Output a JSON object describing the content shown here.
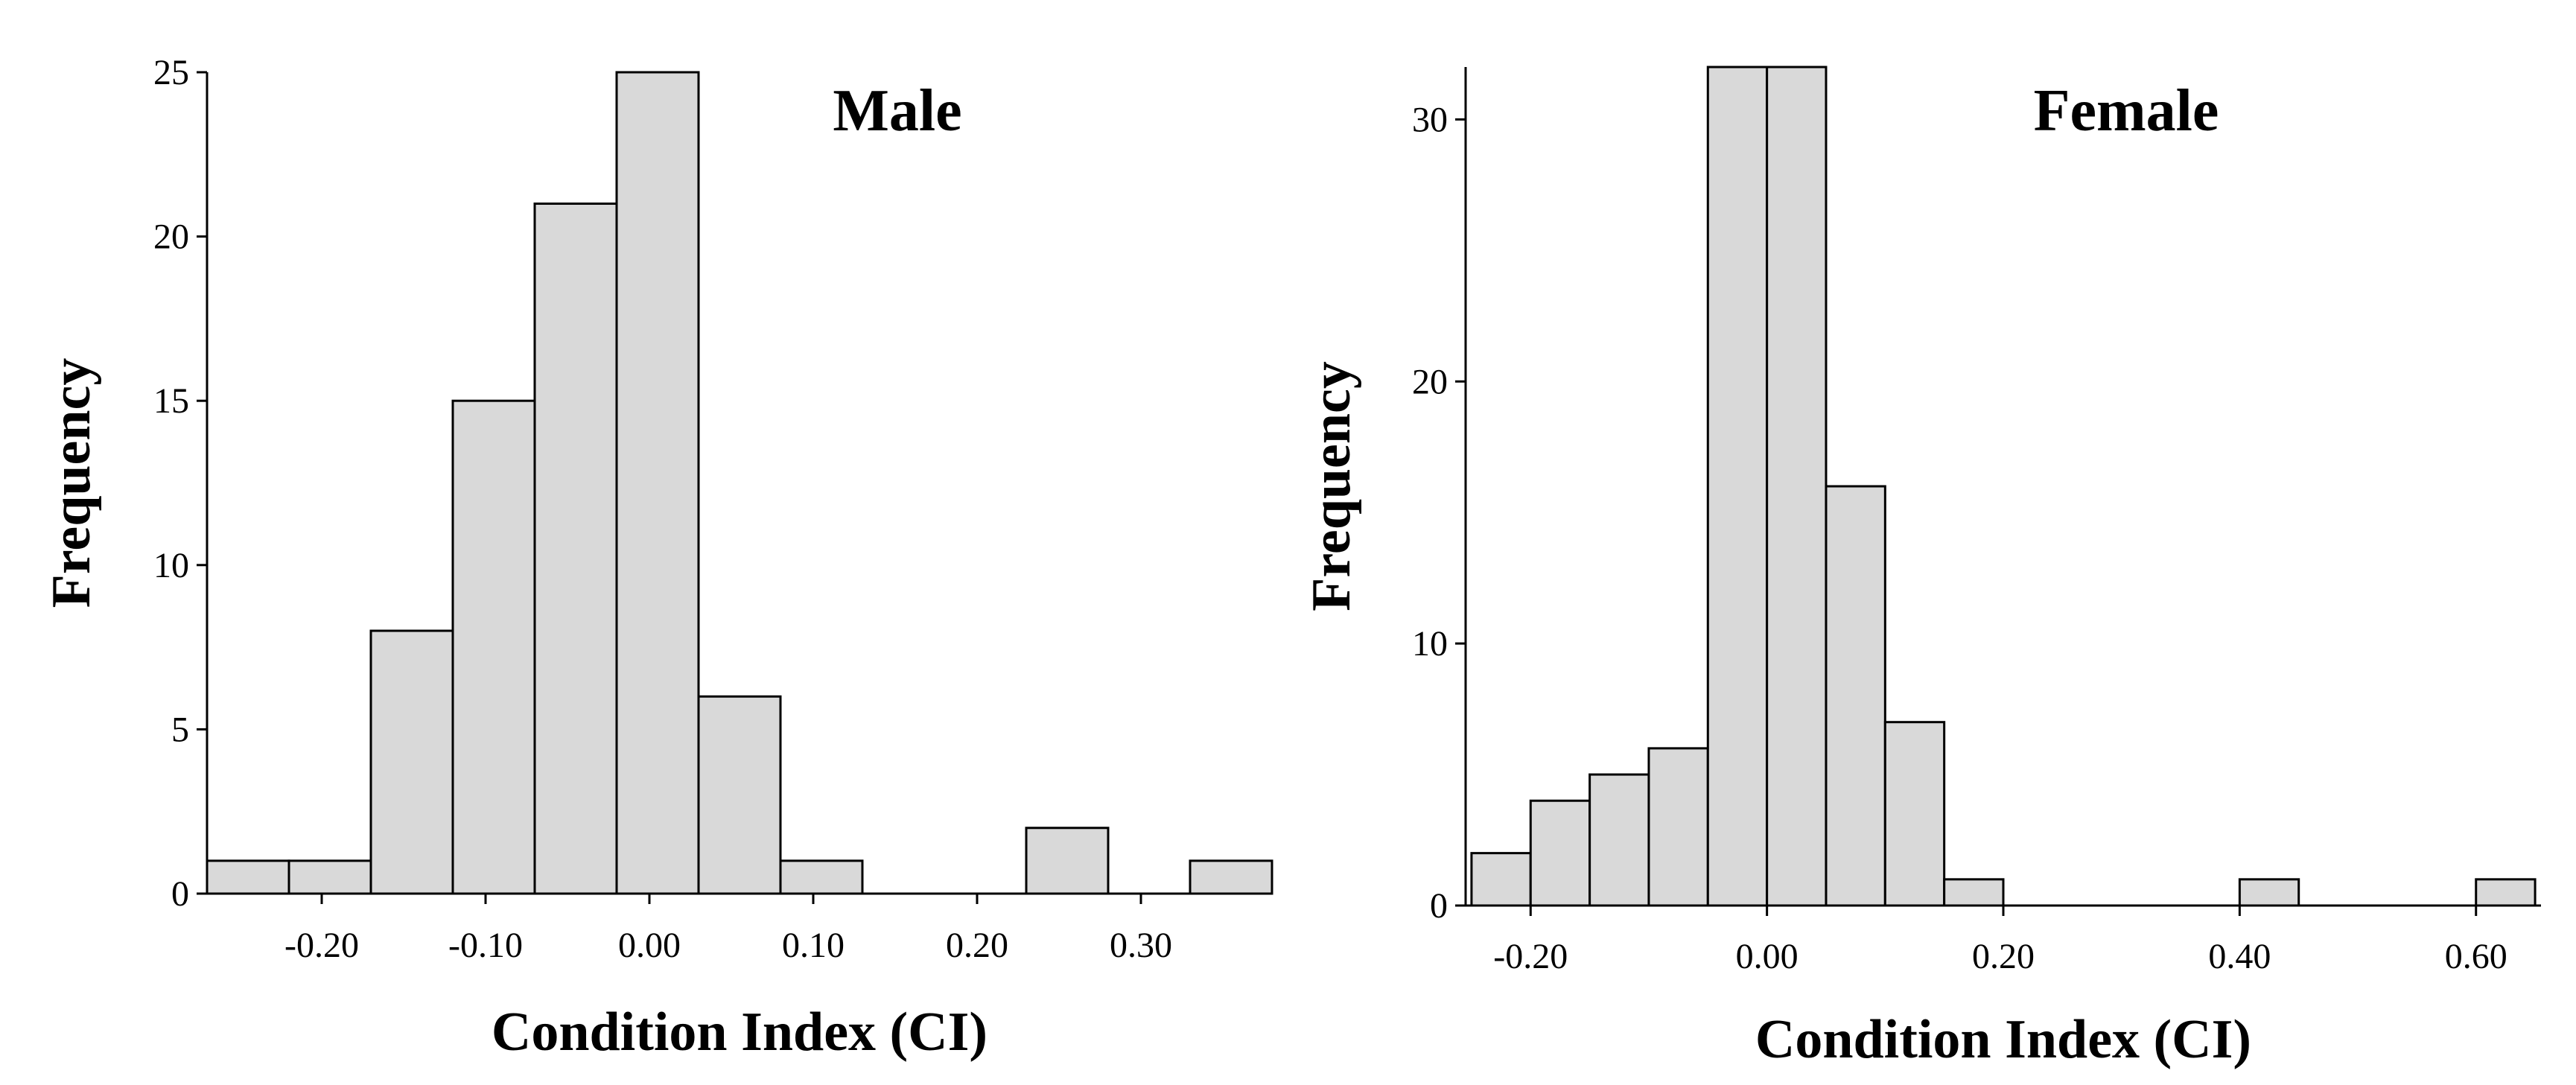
{
  "chart_data": [
    {
      "type": "bar",
      "title": "Male",
      "xlabel": "Condition Index (CI)",
      "ylabel": "Frequency",
      "bin_width": 0.05,
      "bins_start": [
        -0.27,
        -0.22,
        -0.17,
        -0.12,
        -0.07,
        -0.02,
        0.03,
        0.08,
        0.13,
        0.18,
        0.23,
        0.28,
        0.33
      ],
      "values": [
        1,
        1,
        8,
        15,
        21,
        25,
        6,
        1,
        0,
        0,
        2,
        0,
        1
      ],
      "xlim": [
        -0.27,
        0.38
      ],
      "ylim": [
        0,
        25
      ],
      "x_ticks": [
        -0.2,
        -0.1,
        0.0,
        0.1,
        0.2,
        0.3
      ],
      "x_tick_labels": [
        "-0.20",
        "-0.10",
        "0.00",
        "0.10",
        "0.20",
        "0.30"
      ],
      "y_ticks": [
        0,
        5,
        10,
        15,
        20,
        25
      ],
      "y_tick_labels": [
        "0",
        "5",
        "10",
        "15",
        "20",
        "25"
      ]
    },
    {
      "type": "bar",
      "title": "Female",
      "xlabel": "Condition Index (CI)",
      "ylabel": "Frequency",
      "bin_width": 0.05,
      "bins_start": [
        -0.25,
        -0.2,
        -0.15,
        -0.1,
        -0.05,
        0.0,
        0.05,
        0.1,
        0.15,
        0.2,
        0.25,
        0.3,
        0.35,
        0.4,
        0.45,
        0.5,
        0.55,
        0.6
      ],
      "values": [
        2,
        4,
        5,
        6,
        32,
        32,
        16,
        7,
        1,
        0,
        0,
        0,
        0,
        1,
        0,
        0,
        0,
        1
      ],
      "xlim": [
        -0.255,
        0.655
      ],
      "ylim": [
        0,
        32
      ],
      "x_ticks": [
        -0.2,
        0.0,
        0.2,
        0.4,
        0.6
      ],
      "x_tick_labels": [
        "-0.20",
        "0.00",
        "0.20",
        "0.40",
        "0.60"
      ],
      "y_ticks": [
        0,
        10,
        20,
        30
      ],
      "y_tick_labels": [
        "0",
        "10",
        "20",
        "30"
      ]
    }
  ]
}
